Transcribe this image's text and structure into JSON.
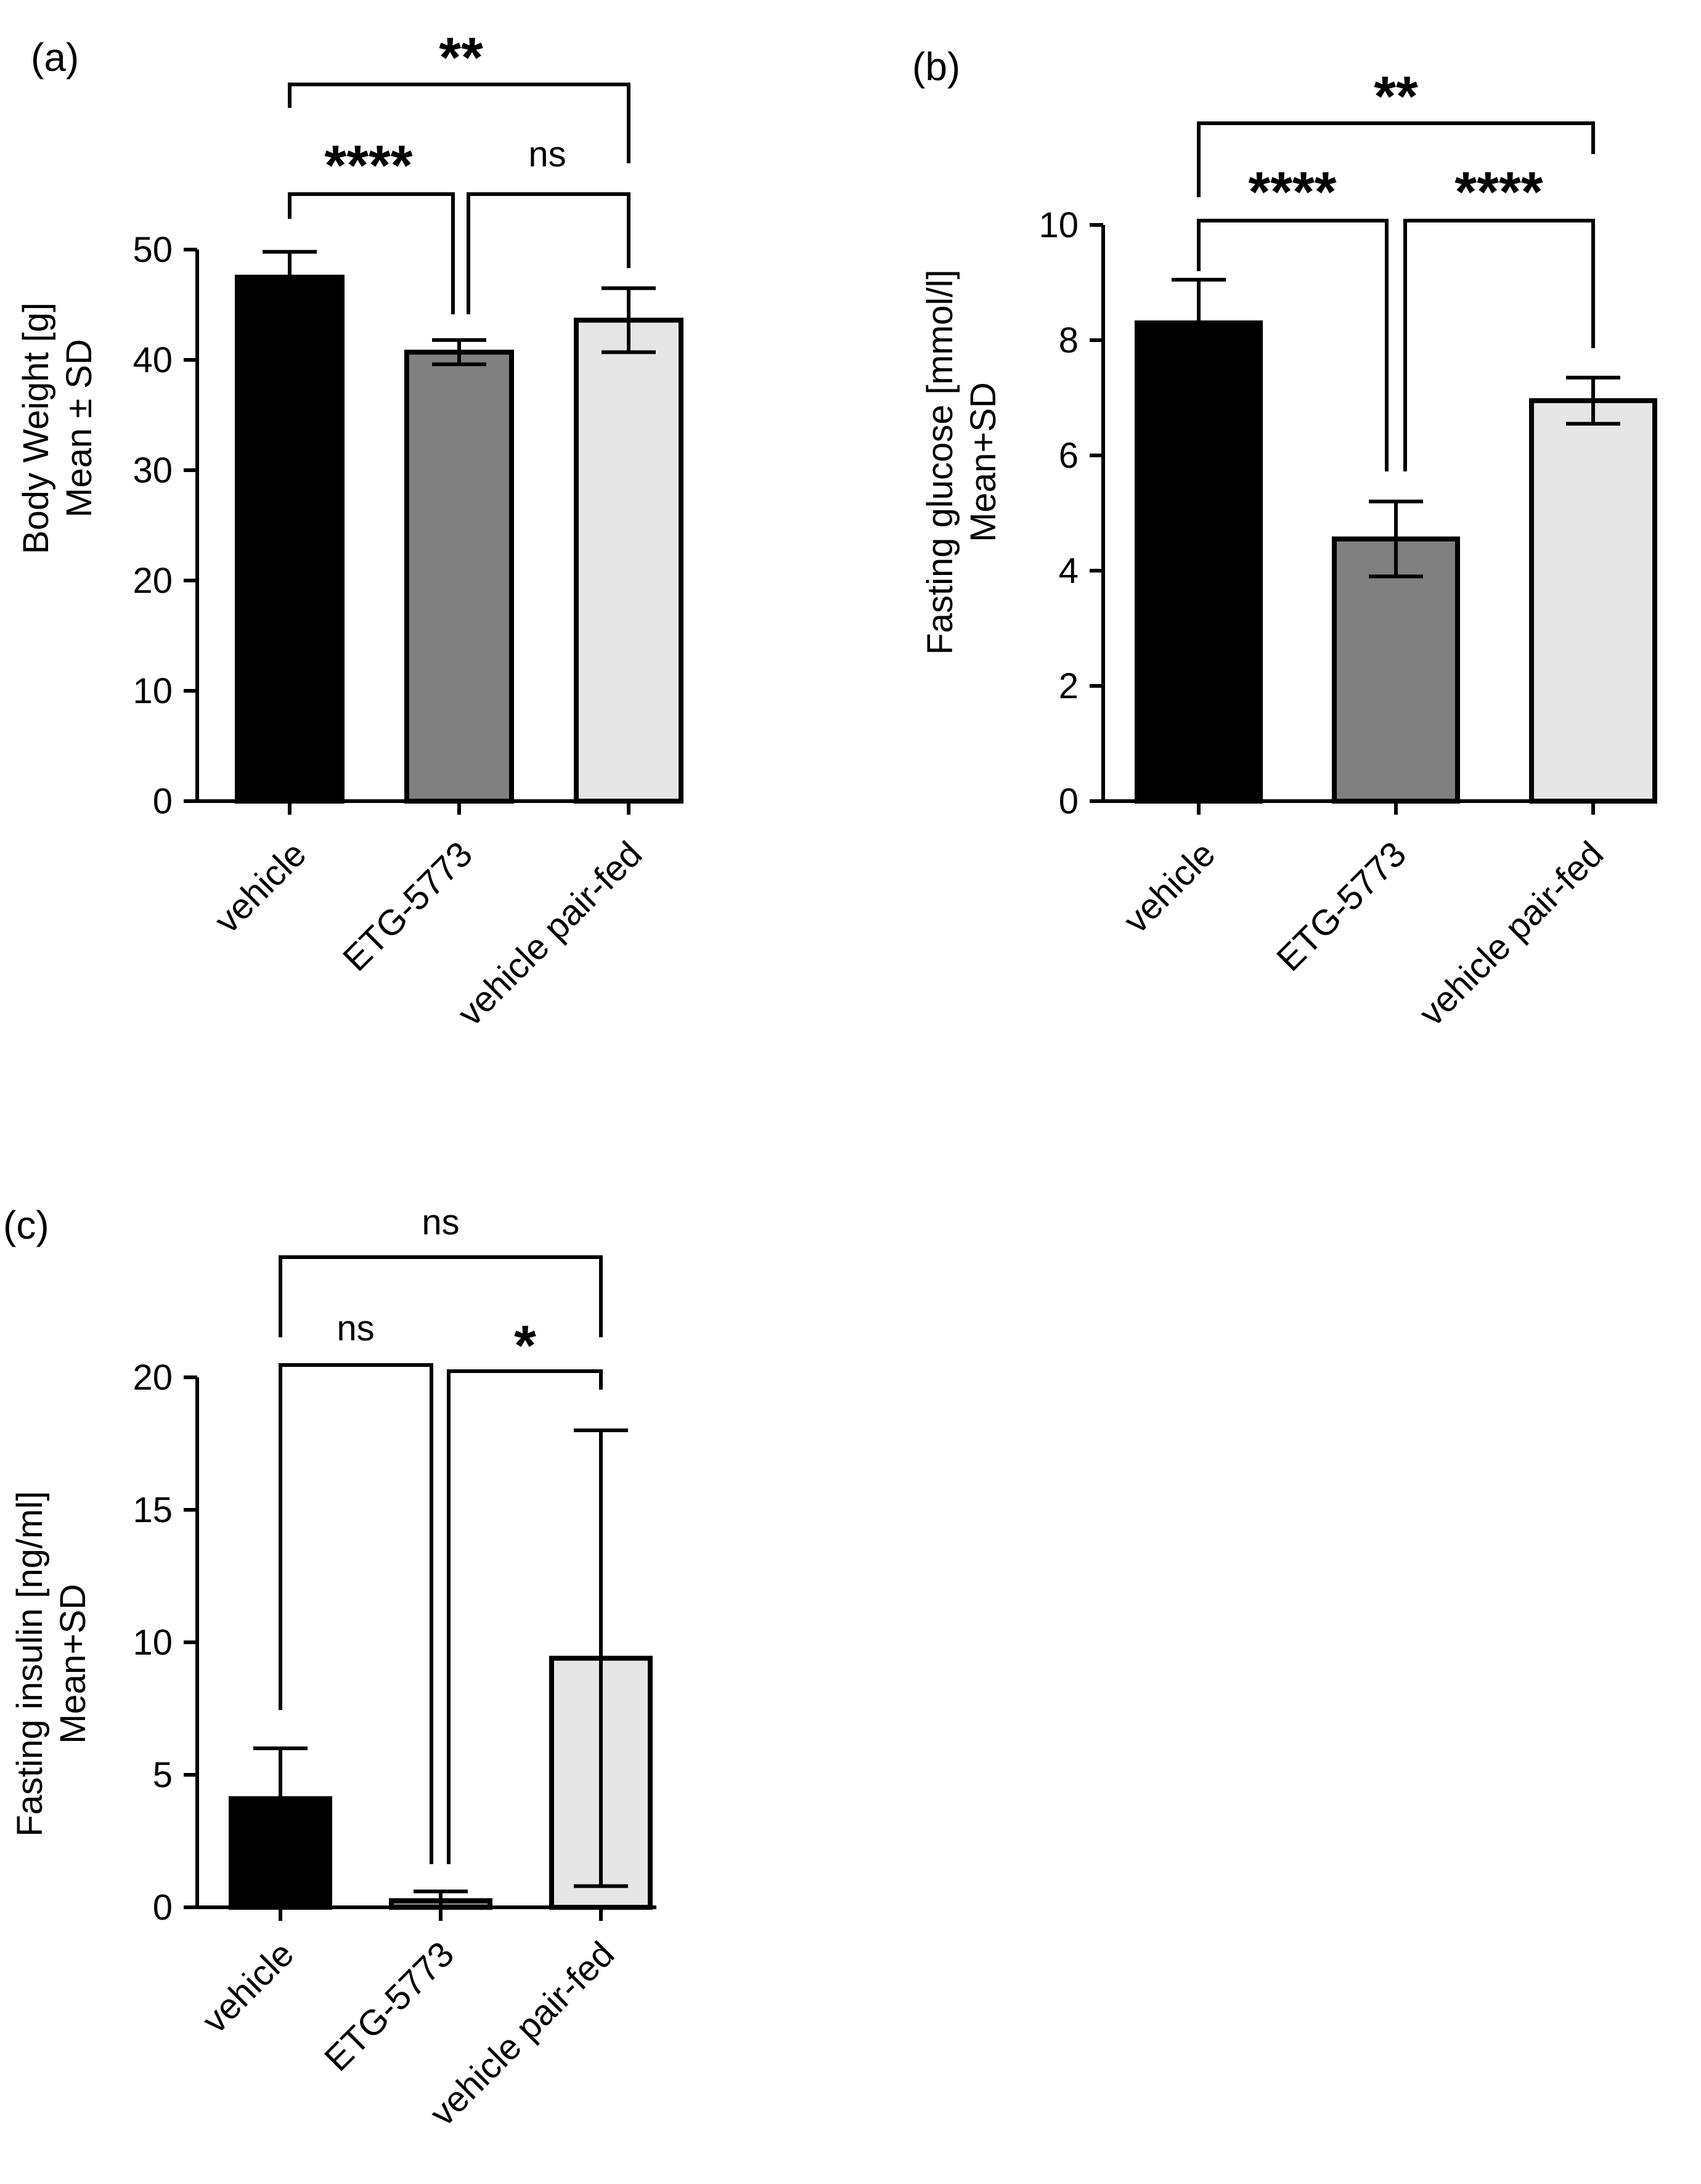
{
  "chart_data": [
    {
      "panel": "(a)",
      "type": "bar",
      "categories": [
        "vehicle",
        "ETG-5773",
        "vehicle pair-fed"
      ],
      "values": [
        47.5,
        40.7,
        43.6
      ],
      "errors": [
        2.3,
        1.1,
        2.9
      ],
      "error_type": "SD",
      "colors": [
        "#000000",
        "#808080",
        "#e6e6e6"
      ],
      "ylabel": [
        "Body Weight [g]",
        "Mean ± SD"
      ],
      "ylim": [
        0,
        50
      ],
      "yticks": [
        0,
        10,
        20,
        30,
        40,
        50
      ],
      "comparisons": [
        {
          "groups": [
            0,
            2
          ],
          "label": "**"
        },
        {
          "groups": [
            0,
            1
          ],
          "label": "****"
        },
        {
          "groups": [
            1,
            2
          ],
          "label": "ns"
        }
      ]
    },
    {
      "panel": "(b)",
      "type": "bar",
      "categories": [
        "vehicle",
        "ETG-5773",
        "vehicle pair-fed"
      ],
      "values": [
        8.3,
        4.55,
        6.95
      ],
      "errors": [
        0.75,
        0.65,
        0.4
      ],
      "error_type": "SD",
      "colors": [
        "#000000",
        "#808080",
        "#e6e6e6"
      ],
      "ylabel": [
        "Fasting glucose [mmol/l]",
        "Mean+SD"
      ],
      "ylim": [
        0,
        10
      ],
      "yticks": [
        0,
        2,
        4,
        6,
        8,
        10
      ],
      "comparisons": [
        {
          "groups": [
            0,
            2
          ],
          "label": "**"
        },
        {
          "groups": [
            0,
            1
          ],
          "label": "****"
        },
        {
          "groups": [
            1,
            2
          ],
          "label": "****"
        }
      ]
    },
    {
      "panel": "(c)",
      "type": "bar",
      "categories": [
        "vehicle",
        "ETG-5773",
        "vehicle pair-fed"
      ],
      "values": [
        4.1,
        0.25,
        9.4
      ],
      "errors": [
        1.9,
        0.35,
        8.6
      ],
      "error_type": "SD",
      "colors": [
        "#000000",
        "#808080",
        "#e6e6e6"
      ],
      "ylabel": [
        "Fasting insulin [ng/ml]",
        "Mean+SD"
      ],
      "ylim": [
        0,
        20
      ],
      "yticks": [
        0,
        5,
        10,
        15,
        20
      ],
      "comparisons": [
        {
          "groups": [
            0,
            2
          ],
          "label": "ns"
        },
        {
          "groups": [
            0,
            1
          ],
          "label": "ns"
        },
        {
          "groups": [
            1,
            2
          ],
          "label": "*"
        }
      ]
    }
  ]
}
